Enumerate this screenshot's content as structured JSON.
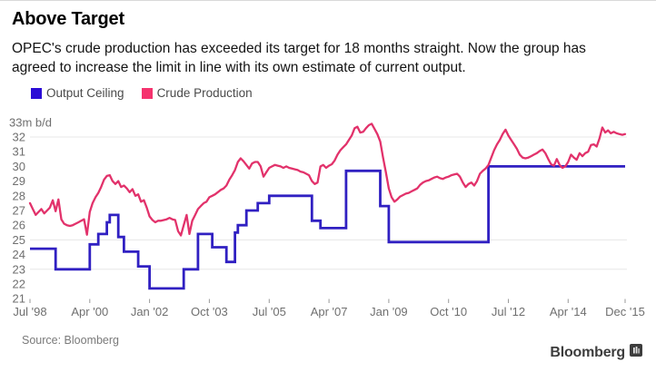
{
  "header": {
    "title": "Above Target",
    "subtitle": "OPEC's crude production has exceeded its target for 18 months straight. Now the group has agreed to increase the limit in line with its own estimate of current output."
  },
  "legend": [
    {
      "label": "Output Ceiling",
      "color": "#2b0cd6"
    },
    {
      "label": "Crude Production",
      "color": "#f5336e"
    }
  ],
  "footer": {
    "source": "Source: Bloomberg",
    "brand": "Bloomberg"
  },
  "chart_data": {
    "type": "line",
    "title": "Above Target",
    "xlabel": "",
    "ylabel": "million barrels per day",
    "ylim": [
      21,
      33
    ],
    "grid": "horizontal, sparse",
    "legend_position": "top-left",
    "y_axis": {
      "top_label": "33m b/d",
      "ticks": [
        32,
        31,
        30,
        29,
        28,
        27,
        26,
        25,
        24,
        23,
        22,
        21
      ]
    },
    "gridlines_at": [
      32,
      25,
      23
    ],
    "x_ticks": [
      {
        "month": 0,
        "label": "Jul '98"
      },
      {
        "month": 21,
        "label": "Apr '00"
      },
      {
        "month": 42,
        "label": "Jan '02"
      },
      {
        "month": 63,
        "label": "Oct '03"
      },
      {
        "month": 84,
        "label": "Jul '05"
      },
      {
        "month": 105,
        "label": "Apr '07"
      },
      {
        "month": 126,
        "label": "Jan '09"
      },
      {
        "month": 147,
        "label": "Oct '10"
      },
      {
        "month": 168,
        "label": "Jul '12"
      },
      {
        "month": 189,
        "label": "Apr '14"
      },
      {
        "month": 209,
        "label": "Dec '15"
      }
    ],
    "x_unit": "months since Jul 1998, monthly data to Dec 2015",
    "series": [
      {
        "name": "Output Ceiling",
        "type": "step",
        "color": "#3020c2",
        "points": [
          [
            0,
            24.4
          ],
          [
            9,
            23.0
          ],
          [
            21,
            24.7
          ],
          [
            24,
            25.4
          ],
          [
            27,
            26.2
          ],
          [
            28,
            26.7
          ],
          [
            31,
            25.2
          ],
          [
            33,
            24.2
          ],
          [
            38,
            23.2
          ],
          [
            42,
            21.7
          ],
          [
            54,
            23.0
          ],
          [
            59,
            25.4
          ],
          [
            64,
            24.5
          ],
          [
            69,
            23.5
          ],
          [
            72,
            25.5
          ],
          [
            73,
            26.0
          ],
          [
            76,
            27.0
          ],
          [
            80,
            27.5
          ],
          [
            84,
            28.0
          ],
          [
            99,
            26.3
          ],
          [
            102,
            25.8
          ],
          [
            111,
            29.7
          ],
          [
            123,
            27.3
          ],
          [
            126,
            24.85
          ],
          [
            161,
            30.0
          ]
        ],
        "end_month": 209
      },
      {
        "name": "Crude Production",
        "type": "line",
        "color": "#e2326b",
        "start": "Jul 1998",
        "interval": "monthly",
        "values": [
          27.5,
          27.1,
          26.7,
          26.9,
          27.1,
          26.8,
          27.0,
          27.2,
          27.7,
          26.95,
          27.75,
          26.4,
          26.1,
          26.0,
          25.95,
          26.0,
          26.1,
          26.2,
          26.3,
          26.4,
          25.35,
          26.9,
          27.5,
          27.9,
          28.2,
          28.6,
          29.1,
          29.35,
          29.4,
          29.0,
          28.8,
          29.0,
          28.6,
          28.7,
          28.5,
          28.25,
          28.45,
          28.0,
          28.1,
          27.6,
          27.7,
          27.2,
          26.6,
          26.35,
          26.2,
          26.3,
          26.3,
          26.35,
          26.4,
          26.5,
          26.4,
          26.35,
          25.6,
          25.3,
          26.0,
          26.7,
          25.4,
          26.3,
          26.7,
          27.1,
          27.3,
          27.5,
          27.6,
          27.9,
          28.0,
          28.1,
          28.25,
          28.4,
          28.5,
          28.7,
          29.1,
          29.4,
          29.75,
          30.3,
          30.55,
          30.35,
          30.1,
          29.85,
          30.2,
          30.3,
          30.3,
          30.0,
          29.3,
          29.6,
          29.9,
          30.0,
          30.1,
          30.05,
          30.0,
          29.9,
          30.0,
          29.9,
          29.85,
          29.8,
          29.75,
          29.65,
          29.6,
          29.5,
          29.4,
          29.0,
          28.8,
          28.9,
          30.0,
          30.1,
          29.9,
          30.05,
          30.15,
          30.4,
          30.8,
          31.1,
          31.3,
          31.5,
          31.8,
          32.1,
          32.6,
          32.7,
          32.3,
          32.35,
          32.6,
          32.8,
          32.9,
          32.55,
          32.2,
          31.7,
          30.6,
          29.6,
          28.5,
          27.9,
          27.6,
          27.75,
          27.95,
          28.05,
          28.15,
          28.2,
          28.3,
          28.4,
          28.5,
          28.75,
          28.9,
          29.0,
          29.05,
          29.15,
          29.25,
          29.3,
          29.2,
          29.15,
          29.25,
          29.3,
          29.4,
          29.45,
          29.5,
          29.3,
          28.9,
          28.6,
          28.8,
          28.9,
          28.7,
          29.0,
          29.5,
          29.7,
          29.85,
          30.1,
          30.6,
          31.1,
          31.5,
          31.8,
          32.2,
          32.5,
          32.1,
          31.8,
          31.5,
          31.2,
          30.8,
          30.6,
          30.55,
          30.6,
          30.7,
          30.8,
          30.9,
          31.05,
          31.15,
          30.9,
          30.5,
          30.15,
          30.05,
          30.5,
          30.1,
          29.9,
          30.0,
          30.3,
          30.8,
          30.6,
          30.45,
          30.9,
          30.7,
          30.9,
          31.0,
          31.45,
          31.5,
          31.35,
          31.9,
          32.65,
          32.3,
          32.45,
          32.25,
          32.35,
          32.25,
          32.2,
          32.15,
          32.2
        ]
      }
    ]
  }
}
